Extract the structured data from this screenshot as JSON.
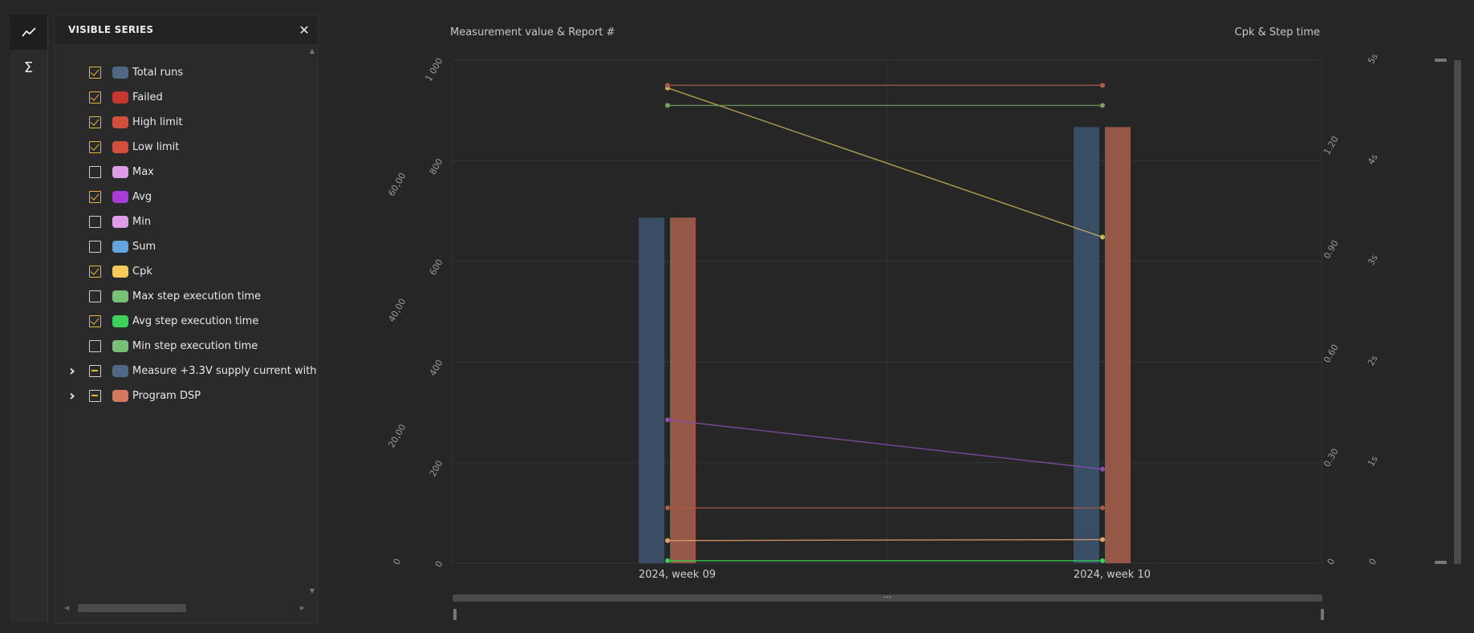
{
  "toolbar": {
    "chart_tool_icon": "line-chart-icon",
    "stats_tool_icon": "sigma-icon"
  },
  "panel": {
    "title": "VISIBLE SERIES",
    "close_icon": "close-icon",
    "series": [
      {
        "label": "Total runs",
        "color": "#4f6886",
        "state": "checked",
        "expandable": false
      },
      {
        "label": "Failed",
        "color": "#c8372d",
        "state": "checked",
        "expandable": false
      },
      {
        "label": "High limit",
        "color": "#d24f3c",
        "state": "checked",
        "expandable": false
      },
      {
        "label": "Low limit",
        "color": "#d24f3c",
        "state": "checked",
        "expandable": false
      },
      {
        "label": "Max",
        "color": "#df9de8",
        "state": "unchecked",
        "expandable": false
      },
      {
        "label": "Avg",
        "color": "#a83cd6",
        "state": "checked",
        "expandable": false
      },
      {
        "label": "Min",
        "color": "#df9de8",
        "state": "unchecked",
        "expandable": false
      },
      {
        "label": "Sum",
        "color": "#64a5dc",
        "state": "unchecked",
        "expandable": false
      },
      {
        "label": "Cpk",
        "color": "#f7c85a",
        "state": "checked",
        "expandable": false
      },
      {
        "label": "Max step execution time",
        "color": "#78c078",
        "state": "unchecked",
        "expandable": false
      },
      {
        "label": "Avg step execution time",
        "color": "#3cd25a",
        "state": "checked",
        "expandable": false
      },
      {
        "label": "Min step execution time",
        "color": "#78c078",
        "state": "unchecked",
        "expandable": false
      },
      {
        "label": "Measure +3.3V supply current with",
        "color": "#4f6886",
        "state": "indeterminate",
        "expandable": true
      },
      {
        "label": "Program DSP",
        "color": "#d47860",
        "state": "indeterminate",
        "expandable": true
      }
    ]
  },
  "chart_data": {
    "type": "bar",
    "title_left": "Measurement value & Report #",
    "title_right": "Cpk & Step time",
    "categories": [
      "2024, week 09",
      "2024, week 10"
    ],
    "axes": {
      "report": {
        "ticks": [
          "0",
          "200",
          "400",
          "600",
          "800",
          "1 000"
        ],
        "range": [
          0,
          1000
        ]
      },
      "measurement": {
        "ticks": [
          "0",
          "20,00",
          "40,00",
          "60,00"
        ],
        "range": [
          0,
          80
        ]
      },
      "cpk": {
        "ticks": [
          "0",
          "0.30",
          "0.60",
          "0.90",
          "1.20"
        ],
        "range": [
          0,
          1.45
        ]
      },
      "step_time": {
        "ticks": [
          "0",
          "1s",
          "2s",
          "3s",
          "4s",
          "5s"
        ],
        "range": [
          0,
          5
        ]
      }
    },
    "bars": [
      {
        "name": "Measure +3.3V supply current with",
        "color": "#3a5068",
        "axis": "report",
        "values": [
          687,
          867
        ]
      },
      {
        "name": "Program DSP",
        "color": "#9b5a48",
        "axis": "report",
        "values": [
          687,
          867
        ]
      }
    ],
    "series": [
      {
        "name": "Cpk",
        "color": "#c7b45a",
        "axis": "cpk",
        "values": [
          1.37,
          0.94
        ]
      },
      {
        "name": "High limit",
        "color": "#b05a4a",
        "axis": "report",
        "values": [
          950,
          950
        ]
      },
      {
        "name": "Avg step execution time",
        "color": "#7aa060",
        "axis": "report",
        "values": [
          910,
          910
        ]
      },
      {
        "name": "Avg",
        "color": "#8a4db0",
        "axis": "report",
        "values": [
          285,
          187
        ]
      },
      {
        "name": "Low limit",
        "color": "#b05a4a",
        "axis": "report",
        "values": [
          110,
          110
        ]
      },
      {
        "name": "Total runs",
        "color": "#e8a070",
        "axis": "report",
        "values": [
          45,
          47
        ]
      },
      {
        "name": "Failed",
        "color": "#3cd25a",
        "axis": "report",
        "values": [
          5,
          5
        ]
      }
    ],
    "grid": true
  }
}
